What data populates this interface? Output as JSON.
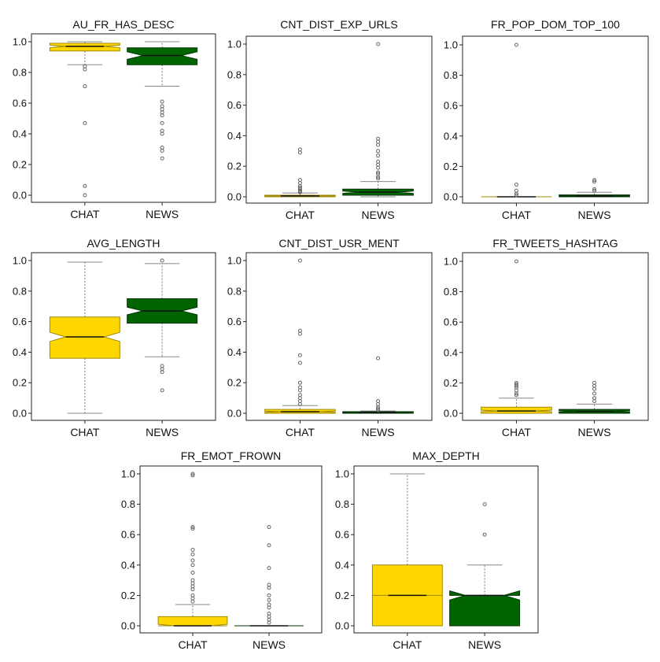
{
  "colors": {
    "chat": "#FFD700",
    "news": "#006400",
    "chat_edge": "#A08800",
    "news_edge": "#003300",
    "outlier": "#666666"
  },
  "chart_data": [
    {
      "type": "box",
      "title": "AU_FR_HAS_DESC",
      "categories": [
        "CHAT",
        "NEWS"
      ],
      "ylim": [
        0,
        1
      ],
      "yticks": [
        "0.0",
        "0.2",
        "0.4",
        "0.6",
        "0.8",
        "1.0"
      ],
      "series": [
        {
          "whisker_low": 0.85,
          "q1": 0.94,
          "notch_low": 0.962,
          "median": 0.97,
          "notch_high": 0.978,
          "q3": 0.99,
          "whisker_high": 1.0,
          "outliers": [
            0.84,
            0.82,
            0.71,
            0.47,
            0.06,
            0.0
          ]
        },
        {
          "whisker_low": 0.71,
          "q1": 0.85,
          "notch_low": 0.885,
          "median": 0.91,
          "notch_high": 0.935,
          "q3": 0.96,
          "whisker_high": 1.0,
          "outliers": [
            0.61,
            0.58,
            0.56,
            0.54,
            0.52,
            0.47,
            0.42,
            0.4,
            0.31,
            0.29,
            0.24
          ]
        }
      ]
    },
    {
      "type": "box",
      "title": "CNT_DIST_EXP_URLS",
      "categories": [
        "CHAT",
        "NEWS"
      ],
      "ylim": [
        0,
        1
      ],
      "yticks": [
        "0.0",
        "0.2",
        "0.4",
        "0.6",
        "0.8",
        "1.0"
      ],
      "series": [
        {
          "whisker_low": 0.0,
          "q1": 0.0,
          "notch_low": 0.004,
          "median": 0.006,
          "notch_high": 0.008,
          "q3": 0.01,
          "whisker_high": 0.025,
          "outliers": [
            0.31,
            0.29,
            0.11,
            0.09,
            0.07,
            0.06,
            0.05,
            0.04,
            0.035,
            0.03
          ]
        },
        {
          "whisker_low": 0.0,
          "q1": 0.01,
          "notch_low": 0.022,
          "median": 0.03,
          "notch_high": 0.038,
          "q3": 0.05,
          "whisker_high": 0.1,
          "outliers": [
            1.0,
            0.38,
            0.36,
            0.34,
            0.3,
            0.27,
            0.23,
            0.21,
            0.19,
            0.16,
            0.15,
            0.13,
            0.12
          ]
        }
      ]
    },
    {
      "type": "box",
      "title": "FR_POP_DOM_TOP_100",
      "categories": [
        "CHAT",
        "NEWS"
      ],
      "ylim": [
        0,
        1
      ],
      "yticks": [
        "0.0",
        "0.2",
        "0.4",
        "0.6",
        "0.8",
        "1.0"
      ],
      "series": [
        {
          "whisker_low": 0.0,
          "q1": 0.0,
          "notch_low": 0.0,
          "median": 0.0,
          "notch_high": 0.0,
          "q3": 0.0,
          "whisker_high": 0.0,
          "outliers": [
            1.0,
            0.08,
            0.04,
            0.02,
            0.01
          ]
        },
        {
          "whisker_low": 0.0,
          "q1": 0.0,
          "notch_low": 0.004,
          "median": 0.006,
          "notch_high": 0.008,
          "q3": 0.012,
          "whisker_high": 0.03,
          "outliers": [
            0.11,
            0.1,
            0.05,
            0.04
          ]
        }
      ]
    },
    {
      "type": "box",
      "title": "AVG_LENGTH",
      "categories": [
        "CHAT",
        "NEWS"
      ],
      "ylim": [
        0,
        1
      ],
      "yticks": [
        "0.0",
        "0.2",
        "0.4",
        "0.6",
        "0.8",
        "1.0"
      ],
      "series": [
        {
          "whisker_low": 0.0,
          "q1": 0.36,
          "notch_low": 0.47,
          "median": 0.5,
          "notch_high": 0.53,
          "q3": 0.63,
          "whisker_high": 0.99,
          "outliers": []
        },
        {
          "whisker_low": 0.37,
          "q1": 0.59,
          "notch_low": 0.645,
          "median": 0.67,
          "notch_high": 0.695,
          "q3": 0.75,
          "whisker_high": 0.98,
          "outliers": [
            1.0,
            0.31,
            0.29,
            0.27,
            0.15
          ]
        }
      ]
    },
    {
      "type": "box",
      "title": "CNT_DIST_USR_MENT",
      "categories": [
        "CHAT",
        "NEWS"
      ],
      "ylim": [
        0,
        1
      ],
      "yticks": [
        "0.0",
        "0.2",
        "0.4",
        "0.6",
        "0.8",
        "1.0"
      ],
      "series": [
        {
          "whisker_low": 0.0,
          "q1": 0.0,
          "notch_low": 0.006,
          "median": 0.01,
          "notch_high": 0.014,
          "q3": 0.025,
          "whisker_high": 0.05,
          "outliers": [
            1.0,
            0.54,
            0.52,
            0.38,
            0.33,
            0.2,
            0.17,
            0.15,
            0.12,
            0.1,
            0.08,
            0.06
          ]
        },
        {
          "whisker_low": 0.0,
          "q1": 0.0,
          "notch_low": 0.002,
          "median": 0.004,
          "notch_high": 0.006,
          "q3": 0.01,
          "whisker_high": 0.015,
          "outliers": [
            0.36,
            0.08,
            0.06,
            0.04,
            0.03,
            0.02
          ]
        }
      ]
    },
    {
      "type": "box",
      "title": "FR_TWEETS_HASHTAG",
      "categories": [
        "CHAT",
        "NEWS"
      ],
      "ylim": [
        0,
        1
      ],
      "yticks": [
        "0.0",
        "0.2",
        "0.4",
        "0.6",
        "0.8",
        "1.0"
      ],
      "series": [
        {
          "whisker_low": 0.0,
          "q1": 0.0,
          "notch_low": 0.01,
          "median": 0.015,
          "notch_high": 0.02,
          "q3": 0.04,
          "whisker_high": 0.1,
          "outliers": [
            1.0,
            0.2,
            0.19,
            0.18,
            0.17,
            0.15,
            0.13,
            0.12
          ]
        },
        {
          "whisker_low": 0.0,
          "q1": 0.0,
          "notch_low": 0.008,
          "median": 0.012,
          "notch_high": 0.016,
          "q3": 0.025,
          "whisker_high": 0.06,
          "outliers": [
            0.2,
            0.18,
            0.16,
            0.13,
            0.1,
            0.08
          ]
        }
      ]
    },
    {
      "type": "box",
      "title": "FR_EMOT_FROWN",
      "categories": [
        "CHAT",
        "NEWS"
      ],
      "ylim": [
        0,
        1
      ],
      "yticks": [
        "0.0",
        "0.2",
        "0.4",
        "0.6",
        "0.8",
        "1.0"
      ],
      "series": [
        {
          "whisker_low": 0.0,
          "q1": 0.0,
          "notch_low": 0.0,
          "median": 0.0,
          "notch_high": 0.01,
          "q3": 0.06,
          "whisker_high": 0.14,
          "outliers": [
            1.0,
            0.99,
            0.65,
            0.64,
            0.5,
            0.47,
            0.43,
            0.4,
            0.35,
            0.3,
            0.28,
            0.26,
            0.24,
            0.2,
            0.18,
            0.16
          ]
        },
        {
          "whisker_low": 0.0,
          "q1": 0.0,
          "notch_low": 0.0,
          "median": 0.0,
          "notch_high": 0.0,
          "q3": 0.0,
          "whisker_high": 0.0,
          "outliers": [
            0.65,
            0.53,
            0.38,
            0.27,
            0.25,
            0.2,
            0.17,
            0.14,
            0.12,
            0.08,
            0.06,
            0.04,
            0.02
          ]
        }
      ]
    },
    {
      "type": "box",
      "title": "MAX_DEPTH",
      "categories": [
        "CHAT",
        "NEWS"
      ],
      "ylim": [
        0,
        1
      ],
      "yticks": [
        "0.0",
        "0.2",
        "0.4",
        "0.6",
        "0.8",
        "1.0"
      ],
      "series": [
        {
          "whisker_low": 0.0,
          "q1": 0.0,
          "notch_low": 0.2,
          "median": 0.2,
          "notch_high": 0.2,
          "q3": 0.4,
          "whisker_high": 1.0,
          "outliers": []
        },
        {
          "whisker_low": 0.0,
          "q1": 0.0,
          "notch_low": 0.17,
          "median": 0.2,
          "notch_high": 0.23,
          "q3": 0.2,
          "whisker_high": 0.4,
          "outliers": [
            0.8,
            0.6
          ]
        }
      ]
    }
  ]
}
